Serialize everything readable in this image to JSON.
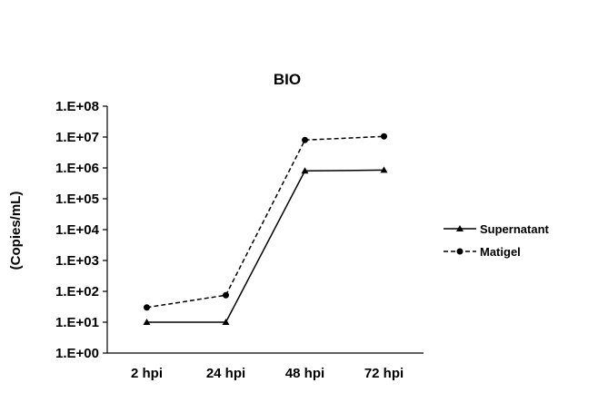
{
  "chart_data": {
    "type": "line",
    "title": "BIO",
    "xlabel": "",
    "ylabel": "(Copies/mL)",
    "y_scale": "log",
    "ylim": [
      1,
      100000000
    ],
    "y_ticks": [
      1,
      10,
      100,
      1000,
      10000,
      100000,
      1000000,
      10000000,
      100000000
    ],
    "y_tick_labels": [
      "1.E+00",
      "1.E+01",
      "1.E+02",
      "1.E+03",
      "1.E+04",
      "1.E+05",
      "1.E+06",
      "1.E+07",
      "1.E+08"
    ],
    "categories": [
      "2 hpi",
      "24 hpi",
      "48 hpi",
      "72 hpi"
    ],
    "series": [
      {
        "name": "Supernatant",
        "values": [
          10,
          10,
          800000,
          850000
        ],
        "line": "solid",
        "marker": "triangle",
        "color": "#000000"
      },
      {
        "name": "Matigel",
        "values": [
          30,
          75,
          8000000,
          10500000
        ],
        "line": "dashed",
        "marker": "circle",
        "color": "#000000"
      }
    ],
    "grid": false,
    "legend_position": "right"
  }
}
